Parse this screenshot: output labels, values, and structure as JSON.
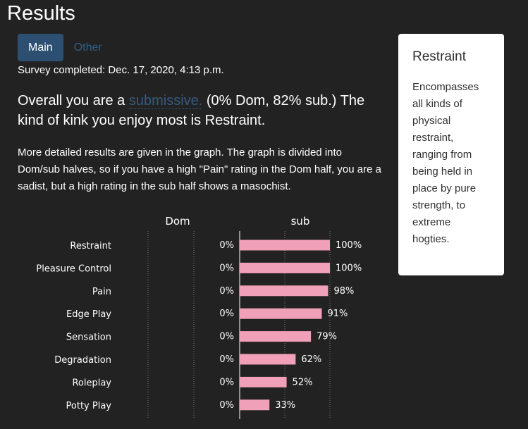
{
  "page": {
    "title": "Results"
  },
  "tabs": [
    {
      "label": "Main",
      "active": true
    },
    {
      "label": "Other",
      "active": false
    }
  ],
  "survey": {
    "completed_text": "Survey completed: Dec. 17, 2020, 4:13 p.m."
  },
  "summary": {
    "prefix": "Overall you are a ",
    "role_link": "submissive.",
    "suffix": " (0% Dom, 82% sub.) The kind of kink you enjoy most is Restraint."
  },
  "explanation": "More detailed results are given in the graph. The graph is divided into Dom/sub halves, so if you have a high \"Pain\" rating in the Dom half, you are a sadist, but a high rating in the sub half shows a masochist.",
  "side_card": {
    "title": "Restraint",
    "text": "Encompasses all kinds of physical restraint, ranging from being held in place by pure strength, to extreme hogties."
  },
  "colors": {
    "bar": "#f0a0b8",
    "link": "#375a7f",
    "tab_active": "#2c4f72"
  },
  "chart_data": {
    "type": "bar",
    "title": "",
    "headers": [
      "Dom",
      "sub"
    ],
    "categories": [
      "Restraint",
      "Pleasure Control",
      "Pain",
      "Edge Play",
      "Sensation",
      "Degradation",
      "Roleplay",
      "Potty Play"
    ],
    "series": [
      {
        "name": "Dom",
        "values": [
          0,
          0,
          0,
          0,
          0,
          0,
          0,
          0
        ],
        "labels": [
          "0%",
          "0%",
          "0%",
          "0%",
          "0%",
          "0%",
          "0%",
          "0%"
        ]
      },
      {
        "name": "sub",
        "values": [
          100,
          100,
          98,
          91,
          79,
          62,
          52,
          33
        ],
        "labels": [
          "100%",
          "100%",
          "98%",
          "91%",
          "79%",
          "62%",
          "52%",
          "33%"
        ]
      }
    ],
    "xlim": [
      0,
      100
    ]
  }
}
